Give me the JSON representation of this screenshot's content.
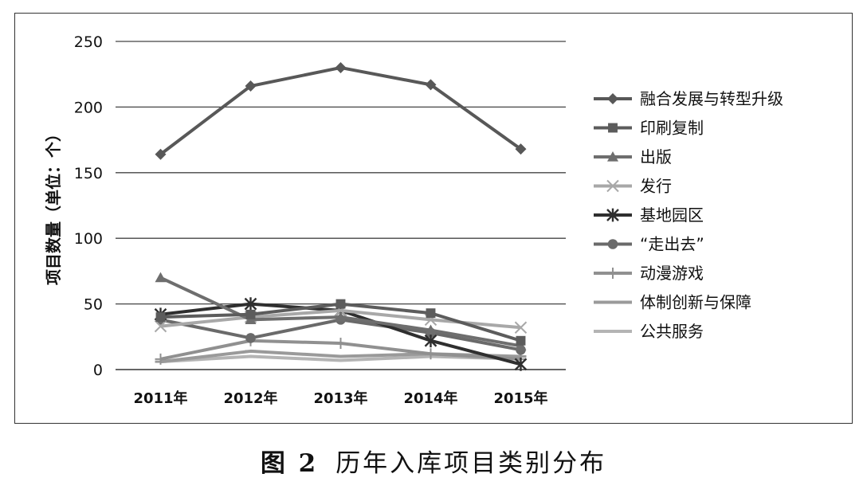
{
  "chart_data": {
    "type": "line",
    "title": "",
    "xlabel": "",
    "ylabel": "项目数量（单位：个）",
    "ylim": [
      0,
      250
    ],
    "yticks": [
      0,
      50,
      100,
      150,
      200,
      250
    ],
    "categories": [
      "2011年",
      "2012年",
      "2013年",
      "2014年",
      "2015年"
    ],
    "grid": true,
    "legend_position": "right",
    "series": [
      {
        "name": "融合发展与转型升级",
        "marker": "diamond",
        "color": "#585858",
        "values": [
          164,
          216,
          230,
          217,
          168
        ]
      },
      {
        "name": "印刷复制",
        "marker": "square",
        "color": "#5c5c5c",
        "values": [
          40,
          42,
          50,
          43,
          22
        ]
      },
      {
        "name": "出版",
        "marker": "triangle",
        "color": "#6e6e6e",
        "values": [
          70,
          38,
          40,
          30,
          18
        ]
      },
      {
        "name": "发行",
        "marker": "x",
        "color": "#a8a8a8",
        "values": [
          33,
          40,
          45,
          38,
          32
        ]
      },
      {
        "name": "基地园区",
        "marker": "star",
        "color": "#2f2f2f",
        "values": [
          42,
          50,
          45,
          22,
          4
        ]
      },
      {
        "name": "“走出去”",
        "marker": "circle",
        "color": "#6a6a6a",
        "values": [
          38,
          24,
          38,
          28,
          15
        ]
      },
      {
        "name": "动漫游戏",
        "marker": "plus",
        "color": "#909090",
        "values": [
          8,
          22,
          20,
          12,
          8
        ]
      },
      {
        "name": "体制创新与保障",
        "marker": "dash",
        "color": "#9a9a9a",
        "values": [
          6,
          14,
          10,
          12,
          10
        ]
      },
      {
        "name": "公共服务",
        "marker": "none",
        "color": "#b4b4b4",
        "values": [
          6,
          10,
          7,
          10,
          8
        ]
      }
    ]
  },
  "caption": {
    "figure_number": "图 2",
    "text": "历年入库项目类别分布"
  }
}
